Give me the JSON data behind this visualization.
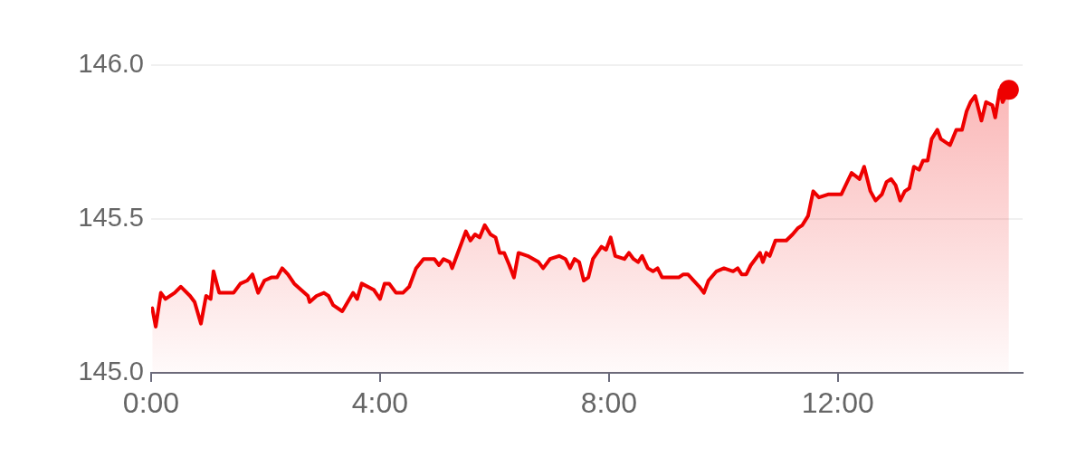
{
  "chart_data": {
    "type": "area",
    "x": [
      0.02,
      0.08,
      0.17,
      0.25,
      0.41,
      0.52,
      0.68,
      0.76,
      0.87,
      0.96,
      1.04,
      1.09,
      1.19,
      1.28,
      1.44,
      1.56,
      1.68,
      1.77,
      1.87,
      1.98,
      2.1,
      2.2,
      2.29,
      2.39,
      2.5,
      2.74,
      2.77,
      2.89,
      3.02,
      3.1,
      3.18,
      3.34,
      3.53,
      3.6,
      3.68,
      3.89,
      4.0,
      4.08,
      4.16,
      4.28,
      4.4,
      4.51,
      4.63,
      4.76,
      4.87,
      4.95,
      5.03,
      5.11,
      5.22,
      5.26,
      5.34,
      5.5,
      5.58,
      5.66,
      5.74,
      5.83,
      5.93,
      6.02,
      6.09,
      6.17,
      6.26,
      6.34,
      6.42,
      6.58,
      6.77,
      6.85,
      6.97,
      7.13,
      7.24,
      7.32,
      7.4,
      7.48,
      7.56,
      7.64,
      7.72,
      7.87,
      7.95,
      8.03,
      8.11,
      8.27,
      8.35,
      8.43,
      8.51,
      8.58,
      8.68,
      8.77,
      8.85,
      8.93,
      9.09,
      9.22,
      9.3,
      9.38,
      9.58,
      9.66,
      9.74,
      9.88,
      10.01,
      10.17,
      10.25,
      10.32,
      10.4,
      10.48,
      10.56,
      10.64,
      10.69,
      10.75,
      10.81,
      10.91,
      11.04,
      11.1,
      11.21,
      11.3,
      11.38,
      11.48,
      11.57,
      11.67,
      11.83,
      12.06,
      12.24,
      12.38,
      12.46,
      12.57,
      12.66,
      12.77,
      12.85,
      12.93,
      13.01,
      13.09,
      13.17,
      13.25,
      13.33,
      13.42,
      13.49,
      13.57,
      13.64,
      13.74,
      13.8,
      13.96,
      14.07,
      14.17,
      14.25,
      14.32,
      14.4,
      14.51,
      14.59,
      14.7,
      14.75,
      14.83,
      14.88,
      14.99
    ],
    "series": [
      {
        "color": "#ee0000",
        "values": [
          145.21,
          145.15,
          145.26,
          145.24,
          145.26,
          145.28,
          145.25,
          145.23,
          145.16,
          145.25,
          145.24,
          145.33,
          145.26,
          145.26,
          145.26,
          145.29,
          145.3,
          145.32,
          145.26,
          145.3,
          145.31,
          145.31,
          145.34,
          145.32,
          145.29,
          145.25,
          145.23,
          145.25,
          145.26,
          145.25,
          145.22,
          145.2,
          145.26,
          145.24,
          145.29,
          145.27,
          145.24,
          145.29,
          145.29,
          145.26,
          145.26,
          145.28,
          145.34,
          145.37,
          145.37,
          145.37,
          145.35,
          145.37,
          145.36,
          145.34,
          145.38,
          145.46,
          145.43,
          145.45,
          145.44,
          145.48,
          145.45,
          145.44,
          145.39,
          145.39,
          145.35,
          145.31,
          145.39,
          145.38,
          145.36,
          145.34,
          145.37,
          145.38,
          145.37,
          145.34,
          145.37,
          145.36,
          145.3,
          145.31,
          145.37,
          145.41,
          145.4,
          145.44,
          145.38,
          145.37,
          145.39,
          145.37,
          145.36,
          145.38,
          145.34,
          145.33,
          145.34,
          145.31,
          145.31,
          145.31,
          145.32,
          145.32,
          145.28,
          145.26,
          145.3,
          145.33,
          145.34,
          145.33,
          145.34,
          145.32,
          145.32,
          145.35,
          145.37,
          145.39,
          145.36,
          145.39,
          145.38,
          145.43,
          145.43,
          145.43,
          145.45,
          145.47,
          145.48,
          145.51,
          145.59,
          145.57,
          145.58,
          145.58,
          145.65,
          145.63,
          145.67,
          145.59,
          145.56,
          145.58,
          145.62,
          145.63,
          145.61,
          145.56,
          145.59,
          145.6,
          145.67,
          145.66,
          145.69,
          145.69,
          145.76,
          145.79,
          145.76,
          145.74,
          145.79,
          145.79,
          145.85,
          145.88,
          145.9,
          145.82,
          145.88,
          145.87,
          145.83,
          145.92,
          145.88,
          145.92
        ]
      }
    ],
    "xlim": [
      0,
      15.23
    ],
    "xticks": [
      {
        "value": 0,
        "label": "0:00"
      },
      {
        "value": 4,
        "label": "4:00"
      },
      {
        "value": 8,
        "label": "8:00"
      },
      {
        "value": 12,
        "label": "12:00"
      }
    ],
    "ylim": [
      145,
      146
    ],
    "yticks": [
      {
        "value": 145,
        "label": "145.0"
      },
      {
        "value": 145.5,
        "label": "145.5"
      },
      {
        "value": 146,
        "label": "146.0"
      }
    ],
    "grid": "y",
    "legend": false
  }
}
